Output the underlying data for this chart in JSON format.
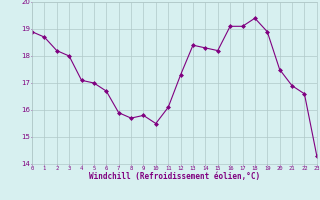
{
  "x": [
    0,
    1,
    2,
    3,
    4,
    5,
    6,
    7,
    8,
    9,
    10,
    11,
    12,
    13,
    14,
    15,
    16,
    17,
    18,
    19,
    20,
    21,
    22,
    23
  ],
  "y": [
    18.9,
    18.7,
    18.2,
    18.0,
    17.1,
    17.0,
    16.7,
    15.9,
    15.7,
    15.8,
    15.5,
    16.1,
    17.3,
    18.4,
    18.3,
    18.2,
    19.1,
    19.1,
    19.4,
    18.9,
    17.5,
    16.9,
    16.6,
    14.3
  ],
  "line_color": "#800080",
  "marker": "D",
  "marker_size": 2,
  "bg_color": "#d7f0f0",
  "grid_color": "#b0c8c8",
  "xlabel": "Windchill (Refroidissement éolien,°C)",
  "xlabel_color": "#800080",
  "tick_color": "#800080",
  "ylim": [
    14,
    20
  ],
  "xlim": [
    0,
    23
  ],
  "yticks": [
    14,
    15,
    16,
    17,
    18,
    19,
    20
  ],
  "xticks": [
    0,
    1,
    2,
    3,
    4,
    5,
    6,
    7,
    8,
    9,
    10,
    11,
    12,
    13,
    14,
    15,
    16,
    17,
    18,
    19,
    20,
    21,
    22,
    23
  ],
  "figsize": [
    3.2,
    2.0
  ],
  "dpi": 100
}
